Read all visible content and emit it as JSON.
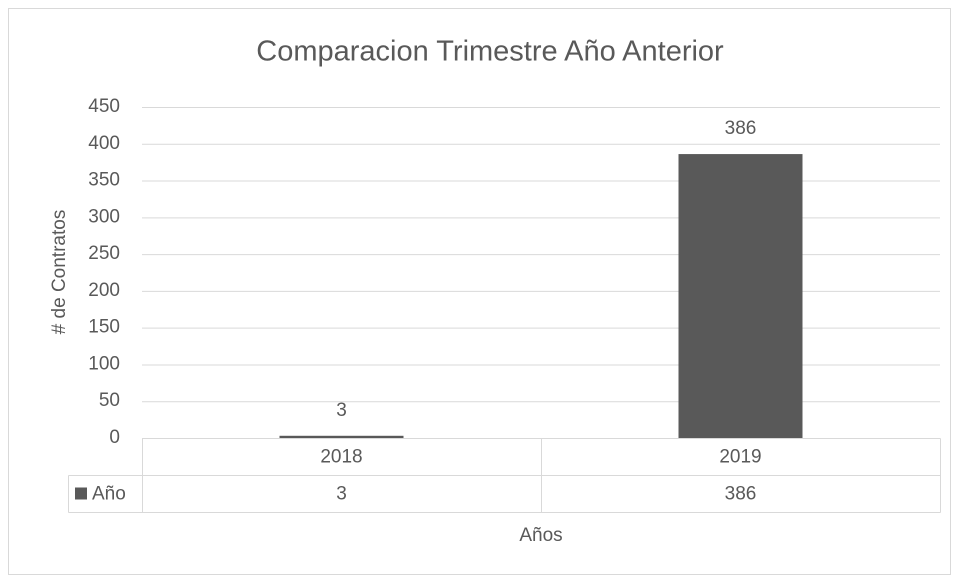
{
  "chart_data": {
    "type": "bar",
    "title": "Comparacion Trimestre Año Anterior",
    "x_label": "Años",
    "y_label": "# de Contratos",
    "categories": [
      "2018",
      "2019"
    ],
    "series": [
      {
        "name": "Año",
        "color": "#595959",
        "values": [
          3,
          386
        ]
      }
    ],
    "ylim": [
      0,
      450
    ],
    "yticks": [
      0,
      50,
      100,
      150,
      200,
      250,
      300,
      350,
      400,
      450
    ],
    "grid": true,
    "data_table": true,
    "data_labels": true
  }
}
